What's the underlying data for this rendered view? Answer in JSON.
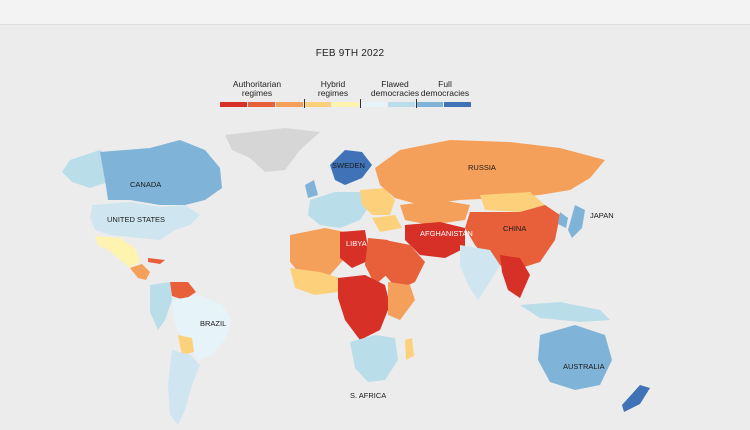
{
  "date": "FEB 9TH 2022",
  "legend": {
    "categories": [
      {
        "label": "Authoritarian regimes",
        "line1": "Authoritarian",
        "line2": "regimes"
      },
      {
        "label": "Hybrid regimes",
        "line1": "Hybrid",
        "line2": "regimes"
      },
      {
        "label": "Flawed democracies",
        "line1": "Flawed",
        "line2": "democracies"
      },
      {
        "label": "Full democracies",
        "line1": "Full",
        "line2": "democracies"
      }
    ],
    "scale_colors": [
      "#d73027",
      "#e8603a",
      "#f5a05a",
      "#fdd17c",
      "#fff3b0",
      "#e6f3f8",
      "#b9dde9",
      "#7fb3d8",
      "#3f72b6"
    ]
  },
  "colors": {
    "background": "#ececec",
    "no_data": "#d6d6d6",
    "ocean": "#ececec"
  },
  "labels": {
    "canada": "CANADA",
    "usa": "UNITED STATES",
    "brazil": "BRAZIL",
    "sweden": "SWEDEN",
    "russia": "RUSSIA",
    "libya": "LIBYA",
    "afghanistan": "AFGHANISTAN",
    "china": "CHINA",
    "japan": "JAPAN",
    "australia": "AUSTRALIA",
    "s_africa": "S. AFRICA"
  }
}
